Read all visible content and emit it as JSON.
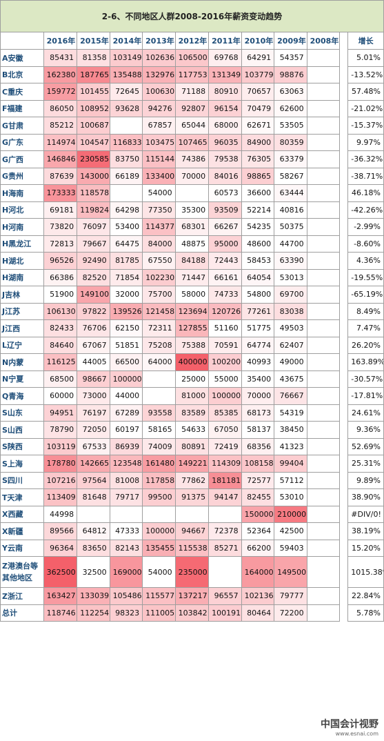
{
  "title": "2-6、不同地区人群2008-2016年薪资变动趋势",
  "headers": [
    "",
    "2016年",
    "2015年",
    "2014年",
    "2013年",
    "2012年",
    "2011年",
    "2010年",
    "2009年",
    "2008年",
    "增长"
  ],
  "rows": [
    {
      "name": "A安徽",
      "v": [
        "85431",
        "81358",
        "103149",
        "102636",
        "106500",
        "69768",
        "64291",
        "54357",
        ""
      ],
      "g": "5.01%"
    },
    {
      "name": "B北京",
      "v": [
        "162380",
        "187765",
        "135488",
        "132976",
        "117753",
        "131349",
        "103779",
        "98876",
        ""
      ],
      "g": "-13.52%"
    },
    {
      "name": "C重庆",
      "v": [
        "159772",
        "101455",
        "72645",
        "100630",
        "71188",
        "80910",
        "70657",
        "63063",
        ""
      ],
      "g": "57.48%"
    },
    {
      "name": "F福建",
      "v": [
        "86050",
        "108952",
        "93628",
        "94276",
        "92807",
        "96154",
        "70479",
        "62600",
        ""
      ],
      "g": "-21.02%"
    },
    {
      "name": "G甘肃",
      "v": [
        "85212",
        "100687",
        "",
        "67857",
        "65044",
        "68000",
        "62671",
        "53505",
        ""
      ],
      "g": "-15.37%"
    },
    {
      "name": "G广东",
      "v": [
        "114974",
        "104547",
        "116833",
        "103475",
        "107465",
        "96035",
        "84900",
        "80359",
        ""
      ],
      "g": "9.97%"
    },
    {
      "name": "G广西",
      "v": [
        "146846",
        "230585",
        "83750",
        "115144",
        "74386",
        "79538",
        "76305",
        "63379",
        ""
      ],
      "g": "-36.32%"
    },
    {
      "name": "G贵州",
      "v": [
        "87639",
        "143000",
        "66189",
        "133400",
        "70000",
        "84016",
        "98865",
        "58267",
        ""
      ],
      "g": "-38.71%"
    },
    {
      "name": "H海南",
      "v": [
        "173333",
        "118578",
        "",
        "54000",
        "",
        "60573",
        "36600",
        "63444",
        ""
      ],
      "g": "46.18%"
    },
    {
      "name": "H河北",
      "v": [
        "69181",
        "119824",
        "64298",
        "77350",
        "35300",
        "93509",
        "52214",
        "40816",
        ""
      ],
      "g": "-42.26%"
    },
    {
      "name": "H河南",
      "v": [
        "73820",
        "76097",
        "53400",
        "114377",
        "68301",
        "66267",
        "54235",
        "50375",
        ""
      ],
      "g": "-2.99%"
    },
    {
      "name": "H黑龙江",
      "v": [
        "72813",
        "79667",
        "64475",
        "84000",
        "48875",
        "95000",
        "48600",
        "44700",
        ""
      ],
      "g": "-8.60%"
    },
    {
      "name": "H湖北",
      "v": [
        "96526",
        "92490",
        "81785",
        "67550",
        "84188",
        "72443",
        "58453",
        "63390",
        ""
      ],
      "g": "4.36%"
    },
    {
      "name": "H湖南",
      "v": [
        "66386",
        "82520",
        "71854",
        "102230",
        "71447",
        "66161",
        "64054",
        "53013",
        ""
      ],
      "g": "-19.55%"
    },
    {
      "name": "J吉林",
      "v": [
        "51900",
        "149100",
        "32000",
        "75700",
        "58000",
        "74733",
        "54800",
        "69700",
        ""
      ],
      "g": "-65.19%"
    },
    {
      "name": "J江苏",
      "v": [
        "106130",
        "97822",
        "139526",
        "121458",
        "123694",
        "120726",
        "77261",
        "83038",
        ""
      ],
      "g": "8.49%"
    },
    {
      "name": "J江西",
      "v": [
        "82433",
        "76706",
        "62150",
        "72311",
        "127855",
        "51160",
        "51775",
        "49503",
        ""
      ],
      "g": "7.47%"
    },
    {
      "name": "L辽宁",
      "v": [
        "84640",
        "67067",
        "51851",
        "75208",
        "75388",
        "70591",
        "64774",
        "62407",
        ""
      ],
      "g": "26.20%"
    },
    {
      "name": "N内蒙",
      "v": [
        "116125",
        "44005",
        "66500",
        "64000",
        "400000",
        "100200",
        "40993",
        "49000",
        ""
      ],
      "g": "163.89%"
    },
    {
      "name": "N宁夏",
      "v": [
        "68500",
        "98667",
        "100000",
        "",
        "25000",
        "55000",
        "35400",
        "43675",
        ""
      ],
      "g": "-30.57%"
    },
    {
      "name": "Q青海",
      "v": [
        "60000",
        "73000",
        "44000",
        "",
        "81000",
        "100000",
        "70000",
        "76667",
        ""
      ],
      "g": "-17.81%"
    },
    {
      "name": "S山东",
      "v": [
        "94951",
        "76197",
        "67289",
        "93558",
        "83589",
        "85385",
        "68173",
        "54319",
        ""
      ],
      "g": "24.61%"
    },
    {
      "name": "S山西",
      "v": [
        "78790",
        "72050",
        "60197",
        "58165",
        "54633",
        "67050",
        "58137",
        "38450",
        ""
      ],
      "g": "9.36%"
    },
    {
      "name": "S陕西",
      "v": [
        "103119",
        "67533",
        "86939",
        "74009",
        "80891",
        "72419",
        "68356",
        "41323",
        ""
      ],
      "g": "52.69%"
    },
    {
      "name": "S上海",
      "v": [
        "178780",
        "142665",
        "123548",
        "161480",
        "149221",
        "114309",
        "108158",
        "99404",
        ""
      ],
      "g": "25.31%"
    },
    {
      "name": "S四川",
      "v": [
        "107216",
        "97564",
        "81008",
        "117858",
        "77862",
        "181181",
        "72577",
        "57112",
        ""
      ],
      "g": "9.89%"
    },
    {
      "name": "T天津",
      "v": [
        "113409",
        "81648",
        "79717",
        "99500",
        "91375",
        "94147",
        "82455",
        "53010",
        ""
      ],
      "g": "38.90%"
    },
    {
      "name": "X西藏",
      "v": [
        "44998",
        "",
        "",
        "",
        "",
        "",
        "150000",
        "210000",
        ""
      ],
      "g": "#DIV/0!"
    },
    {
      "name": "X新疆",
      "v": [
        "89566",
        "64812",
        "47333",
        "100000",
        "94667",
        "72378",
        "52364",
        "42500",
        ""
      ],
      "g": "38.19%"
    },
    {
      "name": "Y云南",
      "v": [
        "96364",
        "83650",
        "82143",
        "135455",
        "115538",
        "85271",
        "66200",
        "59403",
        ""
      ],
      "g": "15.20%"
    },
    {
      "name": "Z港澳台等其他地区",
      "v": [
        "362500",
        "32500",
        "169000",
        "54000",
        "235000",
        "",
        "164000",
        "149500",
        ""
      ],
      "g": "1015.38%"
    },
    {
      "name": "Z浙江",
      "v": [
        "163427",
        "133039",
        "105486",
        "115577",
        "137217",
        "96557",
        "102136",
        "79777",
        ""
      ],
      "g": "22.84%"
    },
    {
      "name": "总计",
      "v": [
        "118746",
        "112254",
        "98323",
        "111005",
        "103842",
        "100191",
        "80464",
        "72200",
        ""
      ],
      "g": "5.78%"
    }
  ],
  "watermark": {
    "text": "中国会计视野",
    "url": "www.esnai.com"
  },
  "colors": {
    "title_bg": "#dce8c4",
    "header_text": "#1f4e79",
    "heat_low": "#ffffff",
    "heat_high": "#f4606a"
  }
}
